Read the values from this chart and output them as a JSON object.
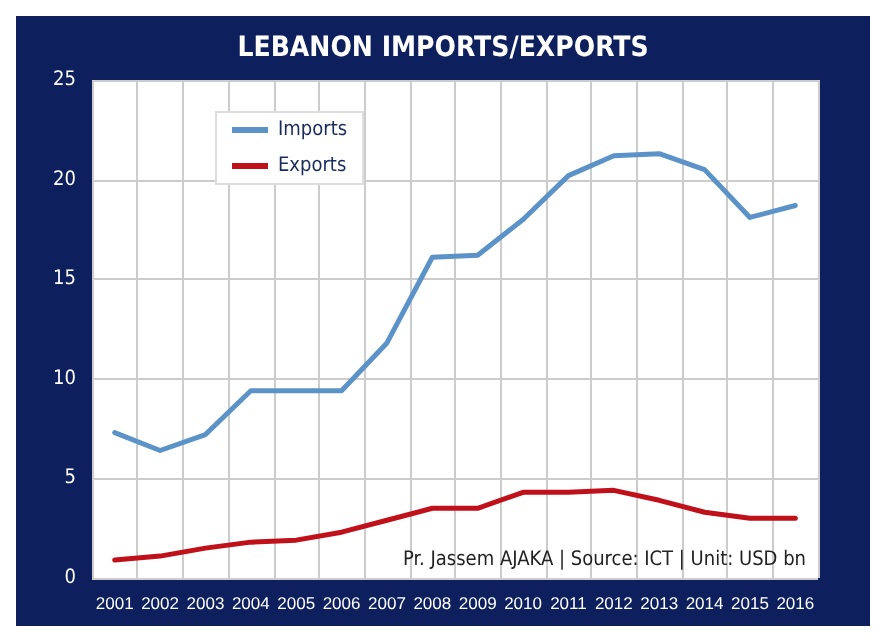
{
  "chart_data": {
    "type": "line",
    "title": "LEBANON IMPORTS/EXPORTS",
    "categories": [
      "2001",
      "2002",
      "2003",
      "2004",
      "2005",
      "2006",
      "2007",
      "2008",
      "2009",
      "2010",
      "2011",
      "2012",
      "2013",
      "2014",
      "2015",
      "2016"
    ],
    "series": [
      {
        "name": "Imports",
        "color": "#5b93c9",
        "values": [
          7.3,
          6.4,
          7.2,
          9.4,
          9.4,
          9.4,
          11.8,
          16.1,
          16.2,
          18,
          20.2,
          21.2,
          21.3,
          20.5,
          18.1,
          18.7
        ]
      },
      {
        "name": "Exports",
        "color": "#c0101a",
        "values": [
          0.9,
          1.1,
          1.5,
          1.8,
          1.9,
          2.3,
          2.9,
          3.5,
          3.5,
          4.3,
          4.3,
          4.4,
          3.9,
          3.3,
          3.0,
          3.0
        ]
      }
    ],
    "ylim": [
      0,
      25
    ],
    "yticks": [
      0,
      5,
      10,
      15,
      20,
      25
    ],
    "grid": true,
    "legend": "top left",
    "marker": "none",
    "line_style": "solid",
    "annotations": [
      "Pr. Jassem AJAKA | Source: ICT | Unit: USD bn"
    ]
  }
}
